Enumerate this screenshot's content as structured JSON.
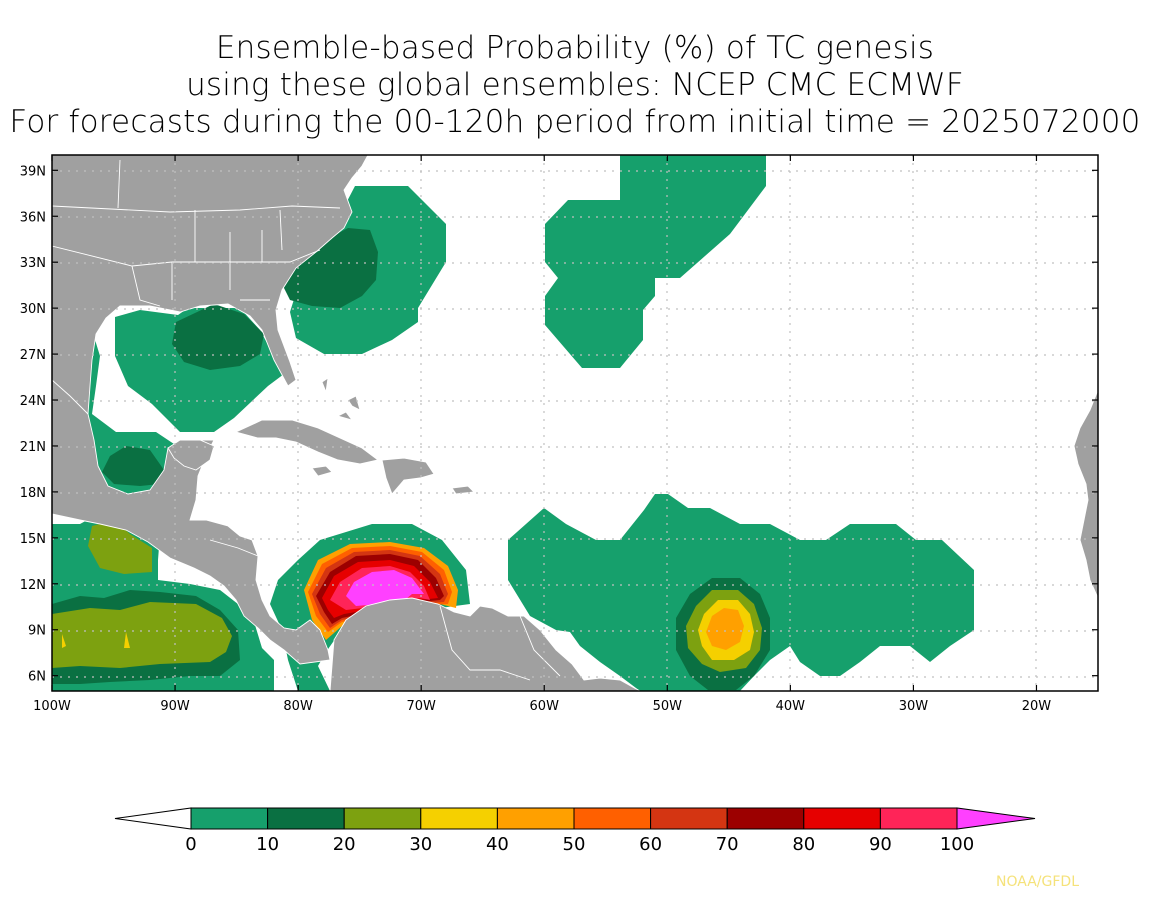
{
  "title": {
    "line1": "Ensemble-based Probability (%) of TC genesis",
    "line2": "using these global ensembles:   NCEP CMC ECMWF",
    "line3": "For forecasts during the 00-120h period from initial time = 2025072000"
  },
  "map": {
    "lon_range": [
      -100,
      -15
    ],
    "lat_range": [
      5,
      40
    ],
    "lat_ticks": [
      {
        "value": 39,
        "label": "39N"
      },
      {
        "value": 36,
        "label": "36N"
      },
      {
        "value": 33,
        "label": "33N"
      },
      {
        "value": 30,
        "label": "30N"
      },
      {
        "value": 27,
        "label": "27N"
      },
      {
        "value": 24,
        "label": "24N"
      },
      {
        "value": 21,
        "label": "21N"
      },
      {
        "value": 18,
        "label": "18N"
      },
      {
        "value": 15,
        "label": "15N"
      },
      {
        "value": 12,
        "label": "12N"
      },
      {
        "value": 9,
        "label": "9N"
      },
      {
        "value": 6,
        "label": "6N"
      }
    ],
    "lon_ticks": [
      {
        "value": -100,
        "label": "100W"
      },
      {
        "value": -90,
        "label": "90W"
      },
      {
        "value": -80,
        "label": "80W"
      },
      {
        "value": -70,
        "label": "70W"
      },
      {
        "value": -60,
        "label": "60W"
      },
      {
        "value": -50,
        "label": "50W"
      },
      {
        "value": -40,
        "label": "40W"
      },
      {
        "value": -30,
        "label": "30W"
      },
      {
        "value": -20,
        "label": "20W"
      }
    ],
    "grid": true
  },
  "colorbar": {
    "levels": [
      "0",
      "10",
      "20",
      "30",
      "40",
      "50",
      "60",
      "70",
      "80",
      "90",
      "100"
    ],
    "colors": [
      "#16a06c",
      "#0a7042",
      "#7da110",
      "#f5d000",
      "#ffa000",
      "#ff6000",
      "#d43512",
      "#9c0000",
      "#e60000",
      "#ff2458"
    ],
    "below_color": "#ffffff",
    "above_color": "#ff40ff"
  },
  "colors": {
    "land": "#a0a0a0",
    "border": "#ffffff",
    "ocean": "#ffffff",
    "grid": "#bbbbbb"
  },
  "credit": "NOAA/GFDL"
}
